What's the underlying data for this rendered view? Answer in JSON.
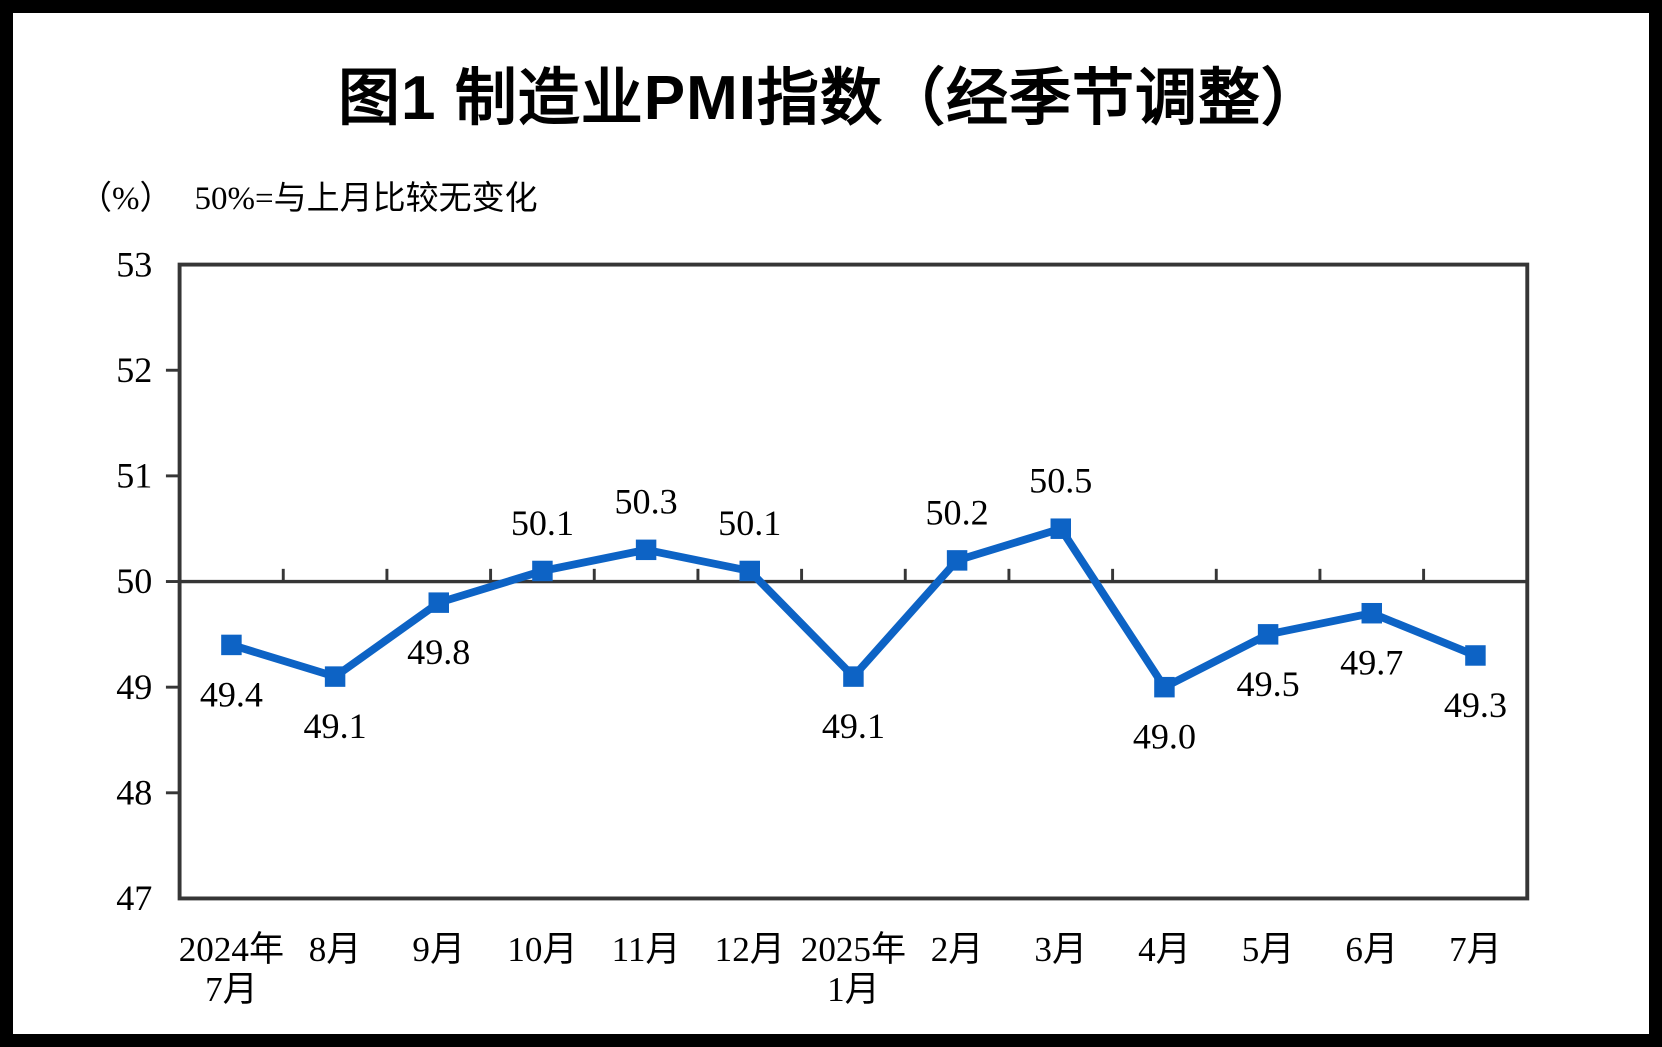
{
  "chart_data": {
    "type": "line",
    "title": "图1  制造业PMI指数（经季节调整）",
    "unit_label": "（%）",
    "note": "50%=与上月比较无变化",
    "categories": [
      "2024年\n7月",
      "8月",
      "9月",
      "10月",
      "11月",
      "12月",
      "2025年\n1月",
      "2月",
      "3月",
      "4月",
      "5月",
      "6月",
      "7月"
    ],
    "series": [
      {
        "name": "制造业PMI指数",
        "values": [
          49.4,
          49.1,
          49.8,
          50.1,
          50.3,
          50.1,
          49.1,
          50.2,
          50.5,
          49.0,
          49.5,
          49.7,
          49.3
        ],
        "labels": [
          "49.4",
          "49.1",
          "49.8",
          "50.1",
          "50.3",
          "50.1",
          "49.1",
          "50.2",
          "50.5",
          "49.0",
          "49.5",
          "49.7",
          "49.3"
        ]
      }
    ],
    "ylabel": "%",
    "xlabel": "",
    "ylim": [
      47,
      53
    ],
    "yticks": [
      47,
      48,
      49,
      50,
      51,
      52,
      53
    ],
    "reference_line": 50,
    "grid": "off",
    "legend": "none",
    "marker": "square",
    "line_color": "#0d63c5",
    "axis_color": "#363636",
    "text_color": "#000000"
  }
}
